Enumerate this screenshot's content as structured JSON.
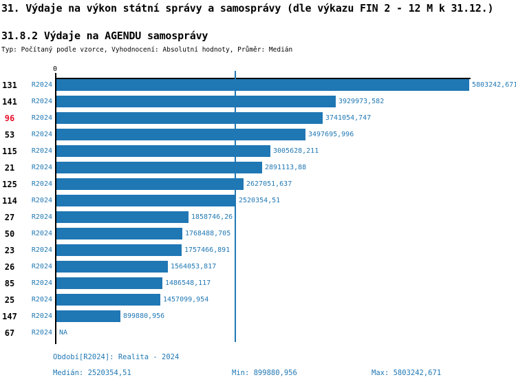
{
  "page": {
    "title": "31. Výdaje na výkon státní správy a samosprávy (dle výkazu FIN 2 - 12 M k 31.12.)",
    "subtitle": "31.8.2 Výdaje na AGENDU samosprávy",
    "meta": "Typ: Počítaný podle vzorce, Vyhodnocení: Absolutní hodnoty, Průměr: Medián"
  },
  "chart_data": {
    "type": "bar",
    "orientation": "horizontal",
    "title": "31.8.2 Výdaje na AGENDU samosprávy",
    "axis_zero_label": "0",
    "xlim": [
      0,
      5803242.671
    ],
    "grid": false,
    "series_period": "R2024",
    "highlighted_category": "96",
    "median_value": 2520354.51,
    "na_label": "NA",
    "rows": [
      {
        "category": "131",
        "period": "R2024",
        "value": 5803242.671,
        "label": "5803242,671"
      },
      {
        "category": "141",
        "period": "R2024",
        "value": 3929973.582,
        "label": "3929973,582"
      },
      {
        "category": "96",
        "period": "R2024",
        "value": 3741054.747,
        "label": "3741054,747"
      },
      {
        "category": "53",
        "period": "R2024",
        "value": 3497695.996,
        "label": "3497695,996"
      },
      {
        "category": "115",
        "period": "R2024",
        "value": 3005628.211,
        "label": "3005628,211"
      },
      {
        "category": "21",
        "period": "R2024",
        "value": 2891113.88,
        "label": "2891113,88"
      },
      {
        "category": "125",
        "period": "R2024",
        "value": 2627051.637,
        "label": "2627051,637"
      },
      {
        "category": "114",
        "period": "R2024",
        "value": 2520354.51,
        "label": "2520354,51"
      },
      {
        "category": "27",
        "period": "R2024",
        "value": 1858746.26,
        "label": "1858746,26"
      },
      {
        "category": "50",
        "period": "R2024",
        "value": 1768488.705,
        "label": "1768488,705"
      },
      {
        "category": "23",
        "period": "R2024",
        "value": 1757466.891,
        "label": "1757466,891"
      },
      {
        "category": "26",
        "period": "R2024",
        "value": 1564053.817,
        "label": "1564053,817"
      },
      {
        "category": "85",
        "period": "R2024",
        "value": 1486548.117,
        "label": "1486548,117"
      },
      {
        "category": "25",
        "period": "R2024",
        "value": 1457099.954,
        "label": "1457099,954"
      },
      {
        "category": "147",
        "period": "R2024",
        "value": 899880.956,
        "label": "899880,956"
      },
      {
        "category": "67",
        "period": "R2024",
        "value": null,
        "label": "NA"
      }
    ],
    "colors": {
      "bar": "#1f77b4",
      "blue_text": "#1f77b4",
      "highlight_red": "#e8112d",
      "axis_black": "#000000"
    }
  },
  "footer": {
    "period": "Období[R2024]: Realita - 2024",
    "median": "Medián: 2520354,51",
    "min": "Min: 899880,956",
    "max": "Max: 5803242,671"
  }
}
